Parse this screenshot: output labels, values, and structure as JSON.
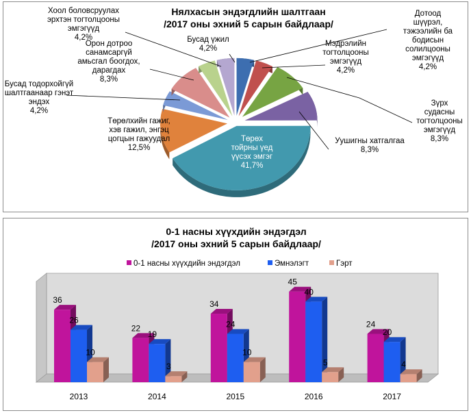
{
  "chart_data": [
    {
      "type": "pie",
      "title": "Нялхасын эндэгдлийн шалтгаан",
      "subtitle": "/2017 оны эхний 5 сарын байдлаар/",
      "slices": [
        {
          "label": [
            "Дотоод",
            "шүүрэл,",
            "тэжээлийн  ба",
            "бодисын",
            "солилцооны",
            "эмгэгүүд"
          ],
          "percent": "4,2%",
          "value": 4.2,
          "color": "#3d6eb0"
        },
        {
          "label": [
            "Мэдрэлийн",
            "тогтолцооны",
            "эмгэгүүд"
          ],
          "percent": "4,2%",
          "value": 4.2,
          "color": "#c0504d"
        },
        {
          "label": [
            "Зүрх",
            "судасны",
            "тогтолцооны",
            "эмгэгүүд"
          ],
          "percent": "8,3%",
          "value": 8.3,
          "color": "#77a443"
        },
        {
          "label": [
            "Уушигны  хатгалгаа"
          ],
          "percent": "8,3%",
          "value": 8.3,
          "color": "#7a62a3"
        },
        {
          "label": [
            "Төрөх",
            "тойрны  үед",
            "үүсэх эмгэг"
          ],
          "percent": "41,7%",
          "value": 41.7,
          "color": "#4299ae"
        },
        {
          "label": [
            "Төрөлхийн  гажиг,",
            "хэв гажил,  энгэц",
            "цогцын  гажуудал"
          ],
          "percent": "12,5%",
          "value": 12.5,
          "color": "#e0823c"
        },
        {
          "label": [
            "Бусад тодорхойгүй",
            "шалтгаанаар  гэнэт",
            "эндэх"
          ],
          "percent": "4,2%",
          "value": 4.2,
          "color": "#7b9ad6"
        },
        {
          "label": [
            "Орон  дотроо",
            "санамсаргүй",
            "амьсгал боогдох,",
            "дарагдах"
          ],
          "percent": "8,3%",
          "value": 8.3,
          "color": "#d98d8b"
        },
        {
          "label": [
            "Хоол  боловсруулах",
            "эрхтэн тогтолцооны",
            "эмгэгүүд"
          ],
          "percent": "4,2%",
          "value": 4.2,
          "color": "#b9d28d"
        },
        {
          "label": [
            "Бусад үжил"
          ],
          "percent": "4,2%",
          "value": 4.2,
          "color": "#b4a7d0"
        }
      ]
    },
    {
      "type": "bar",
      "title": "0-1 насны хүүхдийн эндэгдэл",
      "subtitle": "/2017 оны эхний 5 сарын байдлаар/",
      "categories": [
        "2013",
        "2014",
        "2015",
        "2016",
        "2017"
      ],
      "series": [
        {
          "name": "0-1  насны  хүүхдийн эндэгдэл",
          "values": [
            36,
            22,
            34,
            45,
            24
          ],
          "color": "#c0149c"
        },
        {
          "name": "Эмнэлэгт",
          "values": [
            26,
            19,
            24,
            40,
            20
          ],
          "color": "#1e5ef0"
        },
        {
          "name": "Гэрт",
          "values": [
            10,
            3,
            10,
            5,
            4
          ],
          "color": "#e2a08c"
        }
      ],
      "legend_position": "top",
      "ylim": [
        0,
        50
      ],
      "grid": false
    }
  ]
}
